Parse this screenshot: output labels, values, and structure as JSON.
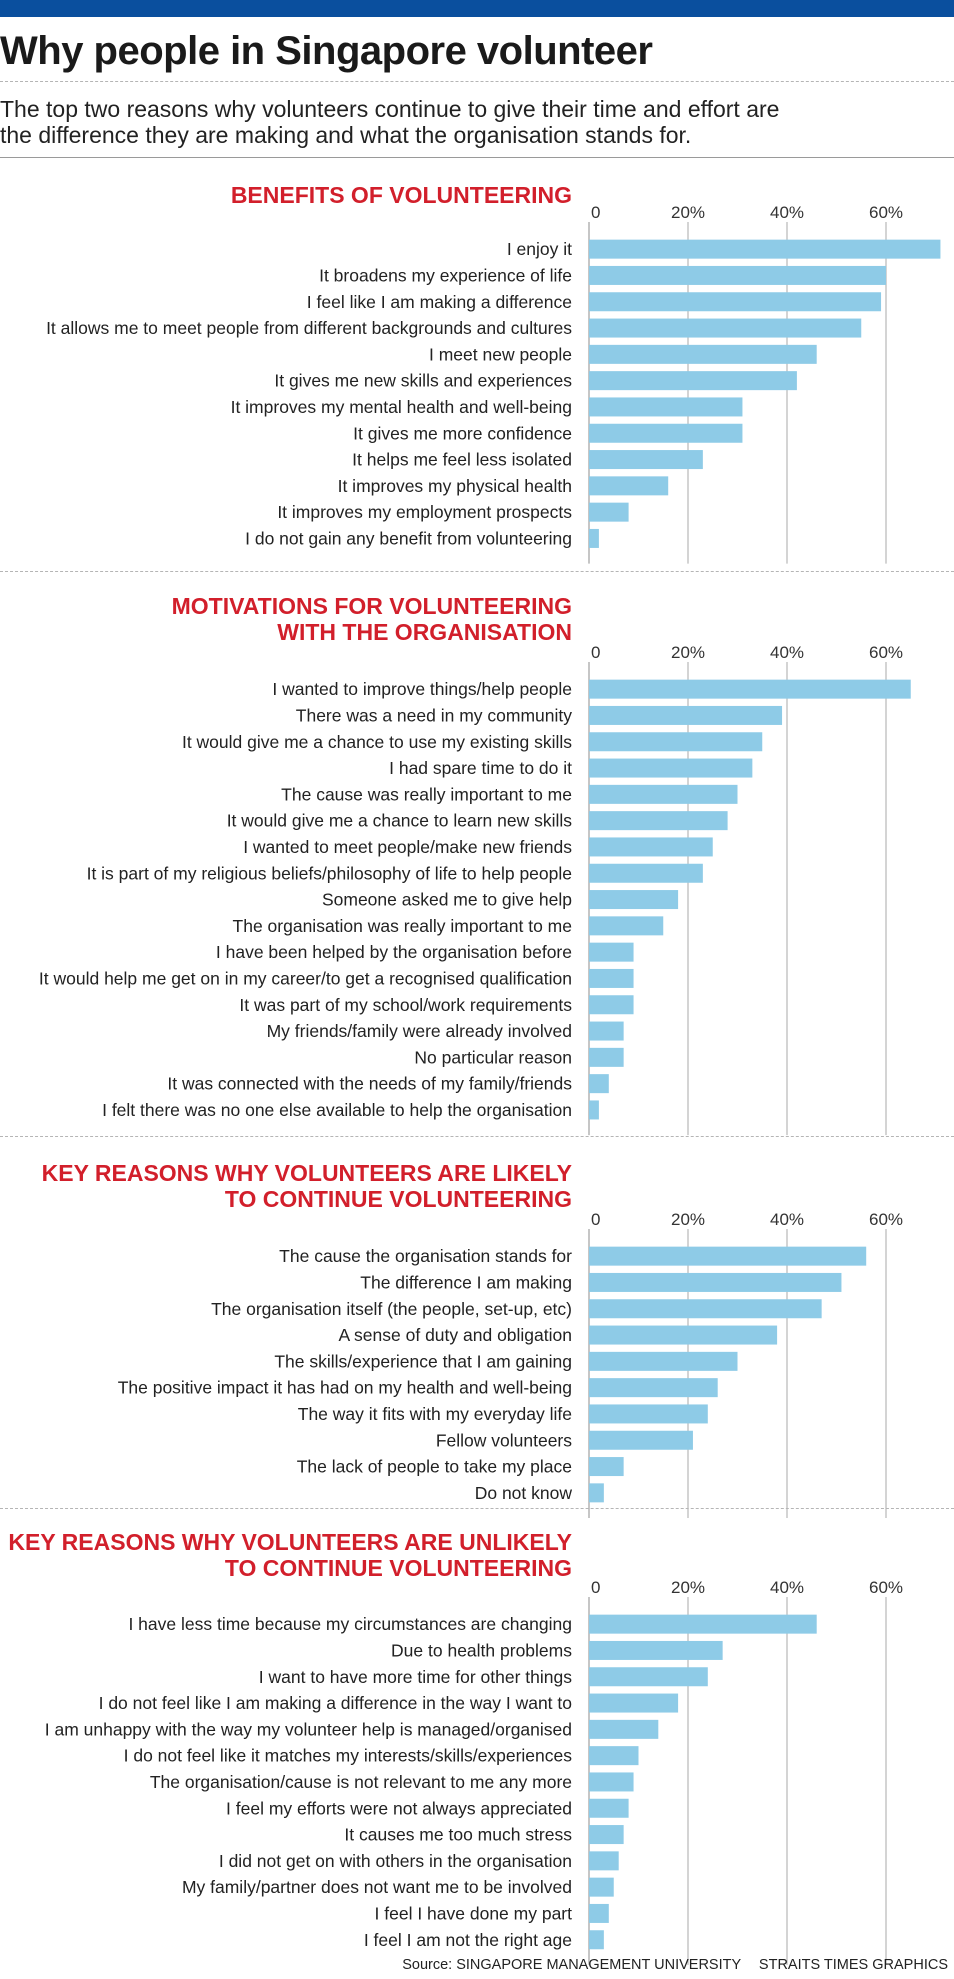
{
  "header": {
    "title": "Why people in Singapore volunteer",
    "subtitle_lines": [
      "The top two reasons why volunteers continue to give their time and effort are",
      "the difference they are making and what the organisation stands for."
    ],
    "bar_color": "#0a4f9e"
  },
  "colors": {
    "bar": "#8ecbe7",
    "accent": "#d21f2b",
    "grid": "#b8b8b8"
  },
  "chart_data": [
    {
      "type": "bar",
      "orientation": "horizontal",
      "title_lines": [
        "BENEFITS OF VOLUNTEERING"
      ],
      "xticks": [
        "0",
        "20%",
        "40%",
        "60%"
      ],
      "xlim": [
        0,
        72
      ],
      "categories": [
        "I enjoy it",
        "It broadens my experience of life",
        "I feel like I am making a difference",
        "It allows me to meet people from different backgrounds and cultures",
        "I meet new people",
        "It gives me new skills and experiences",
        "It improves my mental health and well-being",
        "It gives me more confidence",
        "It helps me feel less isolated",
        "It improves my physical health",
        "It improves my employment prospects",
        "I do not gain any benefit from volunteering"
      ],
      "values": [
        71,
        60,
        59,
        55,
        46,
        42,
        31,
        31,
        23,
        16,
        8,
        2
      ]
    },
    {
      "type": "bar",
      "orientation": "horizontal",
      "title_lines": [
        "MOTIVATIONS FOR VOLUNTEERING",
        "WITH THE ORGANISATION"
      ],
      "xticks": [
        "0",
        "20%",
        "40%",
        "60%"
      ],
      "xlim": [
        0,
        72
      ],
      "categories": [
        "I wanted to improve things/help people",
        "There was a need in my community",
        "It would give me a chance to use my existing skills",
        "I had spare time to do it",
        "The cause was really important to me",
        "It would give me a chance to learn new skills",
        "I wanted to meet people/make new friends",
        "It is part of my religious beliefs/philosophy of life to help people",
        "Someone asked me to give help",
        "The organisation was really important to me",
        "I have been helped by the organisation before",
        "It would help me get on in my career/to get a recognised qualification",
        "It was part of my school/work requirements",
        "My friends/family were already involved",
        "No particular reason",
        "It was connected with the needs of my family/friends",
        "I felt there was no one else available to help the organisation"
      ],
      "values": [
        65,
        39,
        35,
        33,
        30,
        28,
        25,
        23,
        18,
        15,
        9,
        9,
        9,
        7,
        7,
        4,
        2
      ]
    },
    {
      "type": "bar",
      "orientation": "horizontal",
      "title_lines": [
        "KEY REASONS WHY VOLUNTEERS ARE LIKELY",
        "TO CONTINUE VOLUNTEERING"
      ],
      "xticks": [
        "0",
        "20%",
        "40%",
        "60%"
      ],
      "xlim": [
        0,
        72
      ],
      "categories": [
        "The cause the organisation stands for",
        "The difference I am making",
        "The organisation itself (the people, set-up, etc)",
        "A sense of duty and obligation",
        "The skills/experience that I am gaining",
        "The positive impact it has had on my health and well-being",
        "The way it fits with my everyday life",
        "Fellow volunteers",
        "The lack of people to take my place",
        "Do not know"
      ],
      "values": [
        56,
        51,
        47,
        38,
        30,
        26,
        24,
        21,
        7,
        3
      ]
    },
    {
      "type": "bar",
      "orientation": "horizontal",
      "title_lines": [
        "KEY REASONS WHY VOLUNTEERS ARE UNLIKELY",
        "TO CONTINUE VOLUNTEERING"
      ],
      "xticks": [
        "0",
        "20%",
        "40%",
        "60%"
      ],
      "xlim": [
        0,
        72
      ],
      "categories": [
        "I have less time because my circumstances are changing",
        "Due to health problems",
        "I want to have more time for other things",
        "I do not feel like I am making a difference in the way I want to",
        "I am unhappy with the way my volunteer help is managed/organised",
        "I do not feel like it matches my interests/skills/experiences",
        "The organisation/cause is not relevant to me any more",
        "I feel my efforts were not always appreciated",
        "It causes me too much stress",
        "I did not get on with others in the organisation",
        "My family/partner does not want me to be involved",
        "I feel I have done my part",
        "I feel I am not the right age"
      ],
      "values": [
        46,
        27,
        24,
        18,
        14,
        10,
        9,
        8,
        7,
        6,
        5,
        4,
        3
      ]
    }
  ],
  "footer": {
    "source": "Source: SINGAPORE MANAGEMENT UNIVERSITY",
    "credit": "STRAITS TIMES GRAPHICS"
  }
}
